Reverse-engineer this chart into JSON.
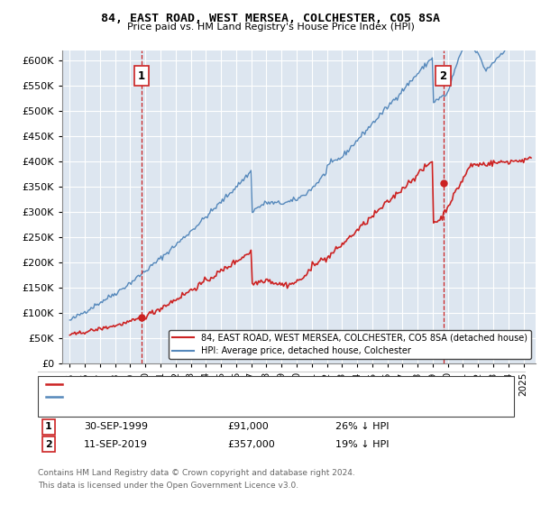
{
  "title": "84, EAST ROAD, WEST MERSEA, COLCHESTER, CO5 8SA",
  "subtitle": "Price paid vs. HM Land Registry's House Price Index (HPI)",
  "ylim": [
    0,
    620000
  ],
  "xlim_start": 1994.5,
  "xlim_end": 2025.8,
  "bg_color": "#dde6f0",
  "grid_color": "#ffffff",
  "hpi_color": "#5588bb",
  "price_color": "#cc2222",
  "ann1_x": 1999.75,
  "ann1_y": 91000,
  "ann1_label": "1",
  "ann1_date": "30-SEP-1999",
  "ann1_price": "£91,000",
  "ann1_note": "26% ↓ HPI",
  "ann2_x": 2019.7,
  "ann2_y": 357000,
  "ann2_label": "2",
  "ann2_date": "11-SEP-2019",
  "ann2_price": "£357,000",
  "ann2_note": "19% ↓ HPI",
  "legend_line1": "84, EAST ROAD, WEST MERSEA, COLCHESTER, CO5 8SA (detached house)",
  "legend_line2": "HPI: Average price, detached house, Colchester",
  "footnote1": "Contains HM Land Registry data © Crown copyright and database right 2024.",
  "footnote2": "This data is licensed under the Open Government Licence v3.0."
}
